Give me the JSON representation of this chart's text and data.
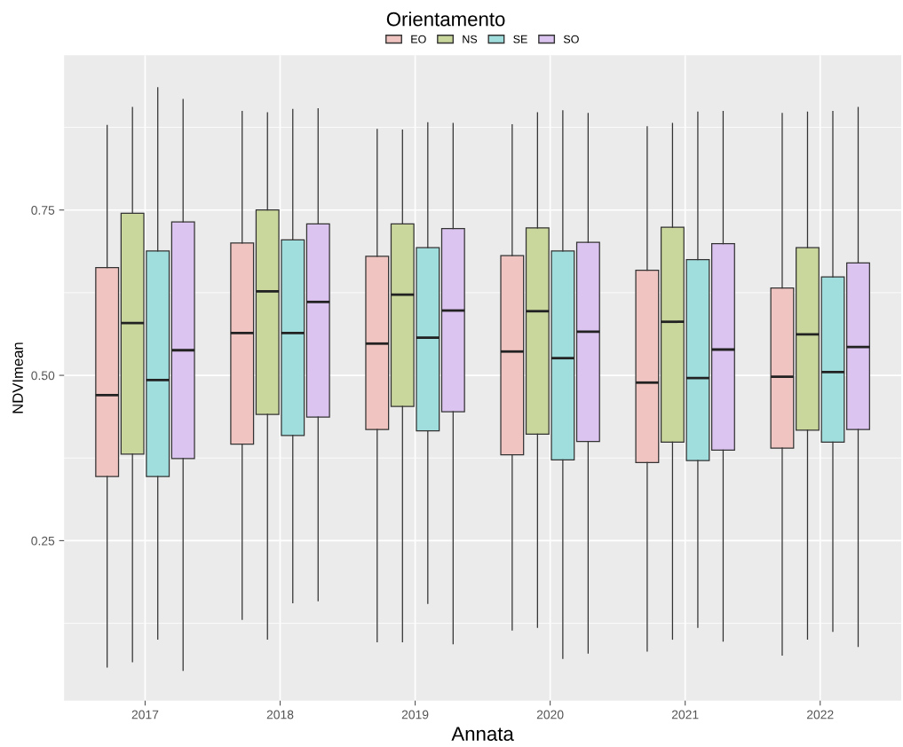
{
  "chart_data": {
    "type": "box",
    "xlabel": "Annata",
    "ylabel": "NDVImean",
    "legend_title": "Orientamento",
    "legend": "top",
    "grid": true,
    "categories": [
      "2017",
      "2018",
      "2019",
      "2020",
      "2021",
      "2022"
    ],
    "ylim": [
      0.008,
      0.984
    ],
    "yticks": [
      {
        "value": 0.25,
        "label": "0.25"
      },
      {
        "value": 0.5,
        "label": "0.50"
      },
      {
        "value": 0.75,
        "label": "0.75"
      }
    ],
    "series": [
      {
        "name": "EO",
        "color": "#f0c4c0",
        "boxes": [
          {
            "low": 0.059,
            "q1": 0.347,
            "median": 0.47,
            "q3": 0.663,
            "high": 0.878
          },
          {
            "low": 0.131,
            "q1": 0.396,
            "median": 0.564,
            "q3": 0.7,
            "high": 0.899
          },
          {
            "low": 0.097,
            "q1": 0.418,
            "median": 0.548,
            "q3": 0.68,
            "high": 0.872
          },
          {
            "low": 0.115,
            "q1": 0.38,
            "median": 0.536,
            "q3": 0.681,
            "high": 0.879
          },
          {
            "low": 0.083,
            "q1": 0.368,
            "median": 0.489,
            "q3": 0.659,
            "high": 0.876
          },
          {
            "low": 0.077,
            "q1": 0.39,
            "median": 0.498,
            "q3": 0.632,
            "high": 0.896
          }
        ]
      },
      {
        "name": "NS",
        "color": "#c9d69c",
        "boxes": [
          {
            "low": 0.067,
            "q1": 0.381,
            "median": 0.579,
            "q3": 0.745,
            "high": 0.905
          },
          {
            "low": 0.101,
            "q1": 0.441,
            "median": 0.627,
            "q3": 0.75,
            "high": 0.897
          },
          {
            "low": 0.097,
            "q1": 0.453,
            "median": 0.622,
            "q3": 0.729,
            "high": 0.871
          },
          {
            "low": 0.119,
            "q1": 0.411,
            "median": 0.597,
            "q3": 0.723,
            "high": 0.897
          },
          {
            "low": 0.101,
            "q1": 0.399,
            "median": 0.581,
            "q3": 0.724,
            "high": 0.881
          },
          {
            "low": 0.101,
            "q1": 0.417,
            "median": 0.562,
            "q3": 0.693,
            "high": 0.898
          }
        ]
      },
      {
        "name": "SE",
        "color": "#a0dede",
        "boxes": [
          {
            "low": 0.101,
            "q1": 0.347,
            "median": 0.493,
            "q3": 0.688,
            "high": 0.935
          },
          {
            "low": 0.156,
            "q1": 0.409,
            "median": 0.564,
            "q3": 0.705,
            "high": 0.902
          },
          {
            "low": 0.155,
            "q1": 0.416,
            "median": 0.557,
            "q3": 0.693,
            "high": 0.882
          },
          {
            "low": 0.072,
            "q1": 0.372,
            "median": 0.526,
            "q3": 0.688,
            "high": 0.9
          },
          {
            "low": 0.119,
            "q1": 0.371,
            "median": 0.496,
            "q3": 0.675,
            "high": 0.898
          },
          {
            "low": 0.113,
            "q1": 0.399,
            "median": 0.505,
            "q3": 0.649,
            "high": 0.899
          }
        ]
      },
      {
        "name": "SO",
        "color": "#dcc4f0",
        "boxes": [
          {
            "low": 0.054,
            "q1": 0.374,
            "median": 0.538,
            "q3": 0.732,
            "high": 0.917
          },
          {
            "low": 0.159,
            "q1": 0.437,
            "median": 0.611,
            "q3": 0.729,
            "high": 0.903
          },
          {
            "low": 0.094,
            "q1": 0.445,
            "median": 0.598,
            "q3": 0.722,
            "high": 0.881
          },
          {
            "low": 0.08,
            "q1": 0.4,
            "median": 0.566,
            "q3": 0.701,
            "high": 0.896
          },
          {
            "low": 0.098,
            "q1": 0.387,
            "median": 0.539,
            "q3": 0.699,
            "high": 0.899
          },
          {
            "low": 0.09,
            "q1": 0.418,
            "median": 0.543,
            "q3": 0.67,
            "high": 0.905
          }
        ]
      }
    ]
  }
}
